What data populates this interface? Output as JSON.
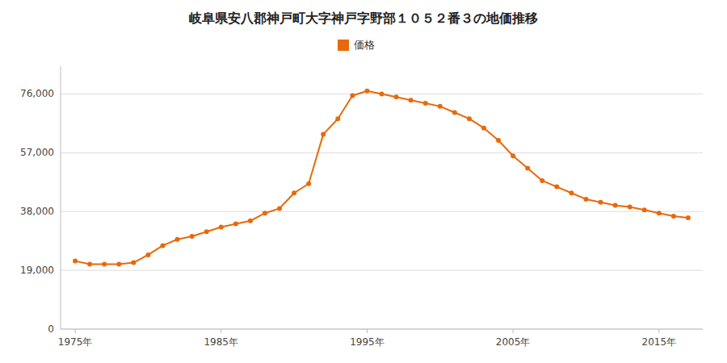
{
  "chart_data": {
    "type": "line",
    "title": "岐阜県安八郡神戸町大字神戸字野部１０５２番３の地価推移",
    "x": [
      1975,
      1976,
      1977,
      1978,
      1979,
      1980,
      1981,
      1982,
      1983,
      1984,
      1985,
      1986,
      1987,
      1988,
      1989,
      1990,
      1991,
      1992,
      1993,
      1994,
      1995,
      1996,
      1997,
      1998,
      1999,
      2000,
      2001,
      2002,
      2003,
      2004,
      2005,
      2006,
      2007,
      2008,
      2009,
      2010,
      2011,
      2012,
      2013,
      2014,
      2015,
      2016,
      2017
    ],
    "series": [
      {
        "name": "価格",
        "color": "#e8690b",
        "marker": "circle",
        "line_style": "solid",
        "values": [
          22000,
          21000,
          21000,
          21000,
          21500,
          24000,
          27000,
          29000,
          30000,
          31500,
          33000,
          34000,
          35000,
          37500,
          39000,
          44000,
          47000,
          63000,
          68000,
          75500,
          77000,
          76000,
          75000,
          74000,
          73000,
          72000,
          70000,
          68000,
          65000,
          61000,
          56000,
          52000,
          48000,
          46000,
          44000,
          42000,
          41000,
          40000,
          39500,
          38500,
          37500,
          36500,
          36000
        ]
      }
    ],
    "xlim": [
      1974,
      2018
    ],
    "xticks": [
      {
        "value": 1975,
        "label": "1975年"
      },
      {
        "value": 1985,
        "label": "1985年"
      },
      {
        "value": 1995,
        "label": "1995年"
      },
      {
        "value": 2005,
        "label": "2005年"
      },
      {
        "value": 2015,
        "label": "2015年"
      }
    ],
    "ylim": [
      0,
      85000
    ],
    "yticks": [
      0,
      {
        "value": 19000,
        "label": "19,000"
      },
      {
        "value": 38000,
        "label": "38,000"
      },
      {
        "value": 57000,
        "label": "57,000"
      },
      {
        "value": 76000,
        "label": "76,000"
      }
    ],
    "grid": true,
    "legend": "top"
  }
}
